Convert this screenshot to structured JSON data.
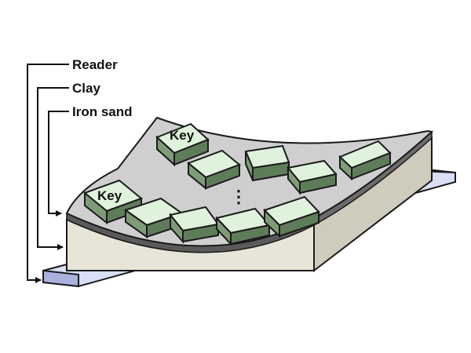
{
  "labels": {
    "reader": "Reader",
    "clay": "Clay",
    "iron_sand": "Iron sand"
  },
  "key_label": "Key",
  "ellipsis": "⋮",
  "colors": {
    "reader_top": "#d9dff4",
    "reader_edge": "#9ea8cf",
    "clay_front": "#e7e4d8",
    "clay_side": "#cfcbbd",
    "iron_top": "#cfcfcf",
    "iron_edge": "#5a5a5a",
    "key_top": "#dff3dc",
    "key_side": "#7e9c78",
    "key_front": "#5f7c5a",
    "outline": "#1a1a1a"
  }
}
